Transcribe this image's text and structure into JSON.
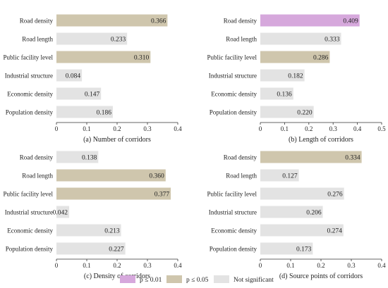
{
  "colors": {
    "p001": "#d6a8dc",
    "p005": "#cfc6ad",
    "ns": "#e3e3e3",
    "axis": "#333333"
  },
  "legend": [
    {
      "key": "p001",
      "label": "p ≤ 0.01"
    },
    {
      "key": "p005",
      "label": "p ≤ 0.05"
    },
    {
      "key": "ns",
      "label": "Not significant"
    }
  ],
  "chart_data": [
    {
      "type": "bar",
      "orientation": "horizontal",
      "caption": "(a)  Number of corridors",
      "categories": [
        "Road density",
        "Road length",
        "Public facility level",
        "Industrial structure",
        "Economic density",
        "Population density"
      ],
      "values": [
        0.366,
        0.233,
        0.31,
        0.084,
        0.147,
        0.186
      ],
      "labels": [
        "0.366",
        "0.233",
        "0.310",
        "0.084",
        "0.147",
        "0.186"
      ],
      "significance": [
        "p005",
        "ns",
        "p005",
        "ns",
        "ns",
        "ns"
      ],
      "xlim": [
        0,
        0.4
      ],
      "xticks": [
        0,
        0.1,
        0.2,
        0.3,
        0.4
      ],
      "xtick_labels": [
        "0",
        "0.1",
        "0.2",
        "0.3",
        "0.4"
      ]
    },
    {
      "type": "bar",
      "orientation": "horizontal",
      "caption": "(b)  Length of corridors",
      "categories": [
        "Road density",
        "Road length",
        "Public facility level",
        "Industrial structure",
        "Economic density",
        "Population density"
      ],
      "values": [
        0.409,
        0.333,
        0.286,
        0.182,
        0.136,
        0.22
      ],
      "labels": [
        "0.409",
        "0.333",
        "0.286",
        "0.182",
        "0.136",
        "0.220"
      ],
      "significance": [
        "p001",
        "ns",
        "p005",
        "ns",
        "ns",
        "ns"
      ],
      "xlim": [
        0,
        0.5
      ],
      "xticks": [
        0,
        0.1,
        0.2,
        0.3,
        0.4,
        0.5
      ],
      "xtick_labels": [
        "0",
        "0.1",
        "0.2",
        "0.3",
        "0.4",
        "0.5"
      ]
    },
    {
      "type": "bar",
      "orientation": "horizontal",
      "caption": "(c)  Density of corridors",
      "categories": [
        "Road density",
        "Road length",
        "Public facility level",
        "Industrial structure",
        "Economic density",
        "Population density"
      ],
      "values": [
        0.138,
        0.36,
        0.377,
        0.042,
        0.213,
        0.227
      ],
      "labels": [
        "0.138",
        "0.360",
        "0.377",
        "0.042",
        "0.213",
        "0.227"
      ],
      "significance": [
        "ns",
        "p005",
        "p005",
        "ns",
        "ns",
        "ns"
      ],
      "xlim": [
        0,
        0.4
      ],
      "xticks": [
        0,
        0.1,
        0.2,
        0.3,
        0.4
      ],
      "xtick_labels": [
        "0",
        "0.1",
        "0.2",
        "0.3",
        "0.4"
      ]
    },
    {
      "type": "bar",
      "orientation": "horizontal",
      "caption": "(d)  Source points of corridors",
      "categories": [
        "Road density",
        "Road length",
        "Public facility level",
        "Industrial structure",
        "Economic density",
        "Population density"
      ],
      "values": [
        0.334,
        0.127,
        0.276,
        0.206,
        0.274,
        0.173
      ],
      "labels": [
        "0.334",
        "0.127",
        "0.276",
        "0.206",
        "0.274",
        "0.173"
      ],
      "significance": [
        "p005",
        "ns",
        "ns",
        "ns",
        "ns",
        "ns"
      ],
      "xlim": [
        0,
        0.4
      ],
      "xticks": [
        0,
        0.1,
        0.2,
        0.3,
        0.4
      ],
      "xtick_labels": [
        "0",
        "0.1",
        "0.2",
        "0.3",
        "0.4"
      ]
    }
  ]
}
